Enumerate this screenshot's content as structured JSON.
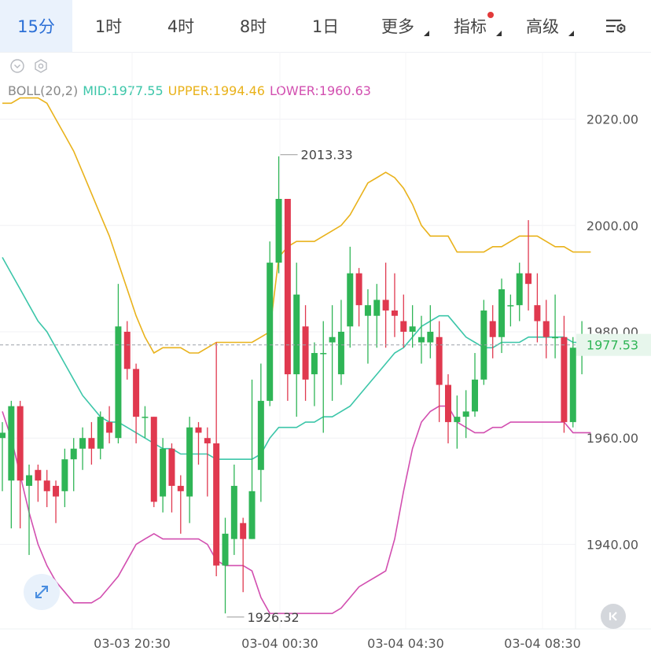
{
  "tabs": [
    {
      "label": "15分",
      "active": true
    },
    {
      "label": "1时"
    },
    {
      "label": "4时"
    },
    {
      "label": "8时"
    },
    {
      "label": "1日"
    },
    {
      "label": "更多",
      "dropdown": true
    },
    {
      "label": "指标",
      "dropdown": true,
      "badge": true
    },
    {
      "label": "高级",
      "dropdown": true
    }
  ],
  "indicator": {
    "name": "BOLL(20,2)",
    "mid": "MID:1977.55",
    "upper": "UPPER:1994.46",
    "lower": "LOWER:1960.63"
  },
  "colors": {
    "up": "#2fb556",
    "down": "#e0394f",
    "mid": "#3cc6a9",
    "upper": "#e9b21b",
    "lower": "#d24fb0",
    "active_tab": "#2b6fd6",
    "tab_badge": "#e23a3a"
  },
  "icons": [
    "collapse-icon",
    "settings-hex-icon",
    "chart-settings-icon",
    "expand-icon",
    "skip-back-icon"
  ],
  "chart_data": {
    "type": "candlestick",
    "y_ticks": [
      "2020.00",
      "2000.00",
      "1980.00",
      "1960.00",
      "1940.00"
    ],
    "x_ticks": [
      "03-03 20:30",
      "03-04 00:30",
      "03-04 04:30",
      "03-04 08:30"
    ],
    "ylim": [
      1922,
      2030
    ],
    "last_price": "1977.53",
    "high_label": "2013.33",
    "low_label": "1926.32",
    "grid": true,
    "candles": [
      [
        1960,
        1961,
        1950,
        1963
      ],
      [
        1952,
        1966,
        1943,
        1967
      ],
      [
        1966,
        1952,
        1943,
        1967
      ],
      [
        1951,
        1953,
        1938,
        1955
      ],
      [
        1954,
        1952,
        1948,
        1955
      ],
      [
        1952,
        1950,
        1947,
        1954
      ],
      [
        1951,
        1949,
        1944,
        1952
      ],
      [
        1950,
        1956,
        1947,
        1958
      ],
      [
        1956,
        1958,
        1950,
        1960
      ],
      [
        1958,
        1960,
        1954,
        1962
      ],
      [
        1960,
        1958,
        1955,
        1963
      ],
      [
        1958,
        1964,
        1956,
        1965
      ],
      [
        1963,
        1961,
        1959,
        1966
      ],
      [
        1960,
        1981,
        1959,
        1989
      ],
      [
        1980,
        1973,
        1971,
        1982
      ],
      [
        1973,
        1964,
        1959,
        1974
      ],
      [
        1964,
        1964,
        1960,
        1966
      ],
      [
        1964,
        1948,
        1947,
        1964
      ],
      [
        1949,
        1958,
        1946,
        1960
      ],
      [
        1958,
        1951,
        1946,
        1959
      ],
      [
        1951,
        1950,
        1942,
        1953
      ],
      [
        1949,
        1962,
        1944,
        1964
      ],
      [
        1962,
        1961,
        1955,
        1963
      ],
      [
        1960,
        1959,
        1949,
        1962
      ],
      [
        1959,
        1936,
        1934,
        1978
      ],
      [
        1936,
        1942,
        1927,
        1945
      ],
      [
        1941,
        1951,
        1938,
        1955
      ],
      [
        1944,
        1941,
        1931,
        1945
      ],
      [
        1941,
        1950,
        1941,
        1971
      ],
      [
        1954,
        1967,
        1948,
        1974
      ],
      [
        1967,
        1993,
        1966,
        1997
      ],
      [
        1993,
        2005,
        1991,
        2013
      ],
      [
        2005,
        1972,
        1967,
        2005
      ],
      [
        1972,
        1987,
        1964,
        1993
      ],
      [
        1981,
        1971,
        1967,
        1985
      ],
      [
        1972,
        1976,
        1966,
        1978
      ],
      [
        1976,
        1976,
        1961,
        1982
      ],
      [
        1978,
        1979,
        1967,
        1985
      ],
      [
        1972,
        1980,
        1970,
        1986
      ],
      [
        1981,
        1991,
        1977,
        1996
      ],
      [
        1991,
        1985,
        1981,
        1992
      ],
      [
        1983,
        1985,
        1974,
        1988
      ],
      [
        1983,
        1986,
        1977,
        1989
      ],
      [
        1986,
        1984,
        1977,
        1993
      ],
      [
        1984,
        1983,
        1979,
        1991
      ],
      [
        1982,
        1980,
        1977,
        1987
      ],
      [
        1980,
        1981,
        1977,
        1985
      ],
      [
        1978,
        1979,
        1974,
        1983
      ],
      [
        1978,
        1980,
        1975,
        1985
      ],
      [
        1979,
        1970,
        1963,
        1982
      ],
      [
        1970,
        1963,
        1959,
        1972
      ],
      [
        1963,
        1964,
        1958,
        1968
      ],
      [
        1964,
        1965,
        1960,
        1969
      ],
      [
        1965,
        1971,
        1964,
        1976
      ],
      [
        1971,
        1984,
        1970,
        1986
      ],
      [
        1982,
        1979,
        1975,
        1985
      ],
      [
        1979,
        1988,
        1976,
        1990
      ],
      [
        1985,
        1985,
        1981,
        1987
      ],
      [
        1985,
        1991,
        1982,
        1993
      ],
      [
        1991,
        1989,
        1984,
        2001
      ],
      [
        1985,
        1982,
        1978,
        1991
      ],
      [
        1982,
        1979,
        1975,
        1986
      ],
      [
        1979,
        1979,
        1975,
        1987
      ],
      [
        1979,
        1963,
        1961,
        1983
      ],
      [
        1963,
        1977,
        1962,
        1979
      ],
      [
        1976,
        1978,
        1972,
        1982
      ],
      [
        1977,
        1978,
        1976,
        1979
      ]
    ],
    "series": [
      {
        "name": "MID",
        "values": [
          1994,
          1991,
          1988,
          1985,
          1982,
          1980,
          1977,
          1974,
          1971,
          1968,
          1966,
          1964,
          1963,
          1963,
          1962,
          1961,
          1960,
          1959,
          1958,
          1958,
          1957,
          1957,
          1957,
          1957,
          1956,
          1956,
          1956,
          1956,
          1956,
          1957,
          1960,
          1962,
          1962,
          1962,
          1963,
          1963,
          1964,
          1964,
          1965,
          1966,
          1968,
          1970,
          1972,
          1974,
          1976,
          1977,
          1979,
          1981,
          1982,
          1983,
          1983,
          1981,
          1979,
          1978,
          1977,
          1977,
          1978,
          1978,
          1978,
          1979,
          1979,
          1979,
          1979,
          1979,
          1978,
          1978,
          1978
        ]
      },
      {
        "name": "UPPER",
        "values": [
          2023,
          2023,
          2024,
          2024,
          2024,
          2023,
          2020,
          2017,
          2014,
          2010,
          2006,
          2002,
          1998,
          1993,
          1988,
          1983,
          1979,
          1976,
          1977,
          1977,
          1977,
          1976,
          1976,
          1977,
          1978,
          1978,
          1978,
          1978,
          1978,
          1979,
          1980,
          1994,
          1996,
          1997,
          1997,
          1997,
          1998,
          1999,
          2000,
          2002,
          2005,
          2008,
          2009,
          2010,
          2009,
          2007,
          2004,
          2000,
          1998,
          1998,
          1998,
          1995,
          1995,
          1995,
          1995,
          1996,
          1996,
          1997,
          1998,
          1998,
          1998,
          1997,
          1996,
          1996,
          1995,
          1995,
          1995
        ]
      },
      {
        "name": "LOWER",
        "values": [
          1965,
          1960,
          1953,
          1946,
          1940,
          1936,
          1933,
          1931,
          1929,
          1929,
          1929,
          1930,
          1932,
          1934,
          1937,
          1940,
          1941,
          1942,
          1941,
          1941,
          1941,
          1941,
          1941,
          1940,
          1937,
          1936,
          1936,
          1936,
          1935,
          1930,
          1927,
          1927,
          1927,
          1927,
          1927,
          1927,
          1927,
          1927,
          1928,
          1930,
          1932,
          1933,
          1934,
          1935,
          1941,
          1950,
          1958,
          1963,
          1965,
          1966,
          1966,
          1963,
          1962,
          1961,
          1961,
          1962,
          1962,
          1963,
          1963,
          1963,
          1963,
          1963,
          1963,
          1963,
          1961,
          1961,
          1961
        ]
      }
    ]
  }
}
